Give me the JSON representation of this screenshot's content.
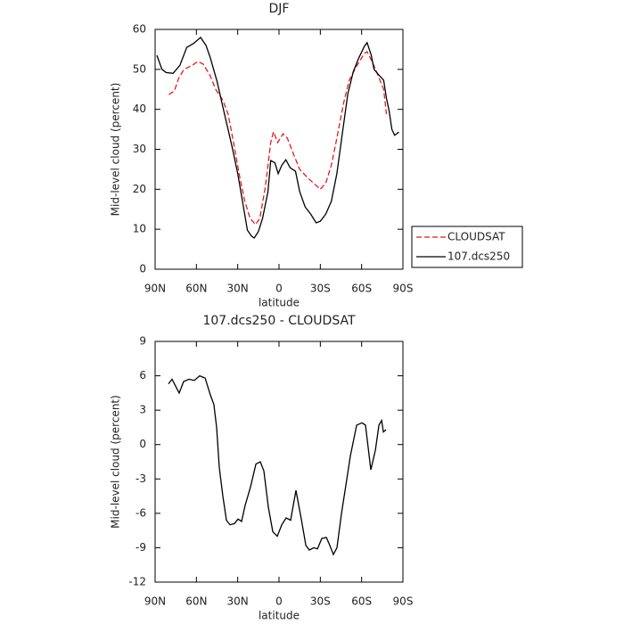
{
  "chart_data": [
    {
      "type": "line",
      "title": "DJF",
      "xlabel": "latitude",
      "ylabel": "Mid-level cloud (percent)",
      "xlim": [
        90,
        -90
      ],
      "xticks": [
        {
          "value": 90,
          "label": "90N"
        },
        {
          "value": 60,
          "label": "60N"
        },
        {
          "value": 30,
          "label": "30N"
        },
        0,
        {
          "value": -30,
          "label": "30S"
        },
        {
          "value": -60,
          "label": "60S"
        },
        {
          "value": -90,
          "label": "90S"
        }
      ],
      "ylim": [
        0,
        60
      ],
      "yticks": [
        0,
        10,
        20,
        30,
        40,
        50,
        60
      ],
      "legend": "right",
      "series": [
        {
          "name": "CLOUDSAT",
          "color": "#e8191c",
          "dash": true,
          "x": [
            80,
            76,
            73,
            69,
            63,
            59,
            55,
            50,
            46,
            41,
            37,
            33,
            29,
            25,
            21,
            17,
            14,
            10,
            6,
            4,
            1,
            -3,
            -6,
            -11,
            -15,
            -21,
            -25,
            -30,
            -34,
            -38,
            -42,
            -47,
            -51,
            -56,
            -62,
            -64,
            -68,
            -72,
            -76,
            -78
          ],
          "values": [
            43.7,
            44.6,
            47.7,
            50,
            51,
            52,
            51.3,
            48.4,
            45,
            42.4,
            38.8,
            31.7,
            23.9,
            17.2,
            12.7,
            11.2,
            12.7,
            20.5,
            31.7,
            34.4,
            31.7,
            33.9,
            32.8,
            28.4,
            25,
            22.8,
            21.6,
            20,
            21.6,
            26,
            32.8,
            41.7,
            47.3,
            50.6,
            54,
            54.4,
            51.7,
            48.4,
            45,
            38.8
          ]
        },
        {
          "name": "107.dcs250",
          "color": "#000000",
          "dash": false,
          "x": [
            88.7,
            85,
            82,
            77,
            72,
            67,
            62,
            57,
            53,
            50,
            45,
            40.8,
            34,
            30,
            26,
            23,
            20,
            18,
            15,
            12,
            8,
            6,
            3,
            0.6,
            -2,
            -5,
            -8,
            -12,
            -15,
            -19,
            -23,
            -27,
            -30,
            -34,
            -38,
            -42,
            -46,
            -50,
            -54,
            -58,
            -62,
            -64,
            -67,
            -69,
            -73,
            -76,
            -78,
            -80,
            -82,
            -84,
            -87
          ],
          "values": [
            53.5,
            50,
            49.2,
            49,
            51,
            55.5,
            56.5,
            58,
            56,
            53,
            47,
            40.6,
            30.5,
            23.9,
            16,
            9.8,
            8.3,
            7.8,
            9.4,
            12.7,
            19.4,
            27.2,
            26.6,
            23.9,
            26,
            27.4,
            25.4,
            24.5,
            19.4,
            15.6,
            13.8,
            11.6,
            12,
            13.8,
            17,
            23.9,
            33.9,
            43.9,
            49.5,
            52.9,
            55.8,
            56.7,
            53.5,
            50,
            48.4,
            47.3,
            42.8,
            39.5,
            35,
            33.5,
            34.3
          ]
        }
      ]
    },
    {
      "type": "line",
      "title": "107.dcs250 - CLOUDSAT",
      "xlabel": "latitude",
      "ylabel": "Mid-level cloud (percent)",
      "xlim": [
        90,
        -90
      ],
      "xticks": [
        {
          "value": 90,
          "label": "90N"
        },
        {
          "value": 60,
          "label": "60N"
        },
        {
          "value": 30,
          "label": "30N"
        },
        0,
        {
          "value": -30,
          "label": "30S"
        },
        {
          "value": -60,
          "label": "60S"
        },
        {
          "value": -90,
          "label": "90S"
        }
      ],
      "ylim": [
        -12,
        9
      ],
      "yticks": [
        -12,
        -9,
        -6,
        -3,
        0,
        3,
        6,
        9
      ],
      "series": [
        {
          "color": "#000000",
          "dash": false,
          "x": [
            80.3,
            77.7,
            72.5,
            69.3,
            65.4,
            61.5,
            57.6,
            53.7,
            49.8,
            47.3,
            45.3,
            43.4,
            40.8,
            38.2,
            35.6,
            32.4,
            29.8,
            27.2,
            24.6,
            20.7,
            16.8,
            13.6,
            11,
            7.7,
            4.5,
            1.3,
            -2,
            -5.2,
            -8.4,
            -12.3,
            -16.2,
            -19.5,
            -22,
            -25.3,
            -27.9,
            -31.1,
            -34.4,
            -36.9,
            -39.5,
            -42.1,
            -45.4,
            -48.6,
            -51.8,
            -56.4,
            -60.3,
            -62.8,
            -66.7,
            -70,
            -72.6,
            -74.5,
            -75.8,
            -77.7
          ],
          "values": [
            5.3,
            5.7,
            4.5,
            5.5,
            5.7,
            5.6,
            6,
            5.8,
            4.3,
            3.5,
            1.5,
            -2,
            -4.5,
            -6.6,
            -7,
            -6.9,
            -6.5,
            -6.7,
            -5.3,
            -3.7,
            -1.7,
            -1.5,
            -2.3,
            -5.5,
            -7.6,
            -8,
            -7,
            -6.4,
            -6.6,
            -4,
            -6.5,
            -8.8,
            -9.2,
            -9,
            -9.1,
            -8.2,
            -8.1,
            -8.8,
            -9.6,
            -9,
            -6,
            -3.5,
            -1,
            1.7,
            1.9,
            1.7,
            -2.2,
            -0.5,
            1.7,
            2.1,
            1.1,
            1.3
          ]
        }
      ]
    }
  ]
}
